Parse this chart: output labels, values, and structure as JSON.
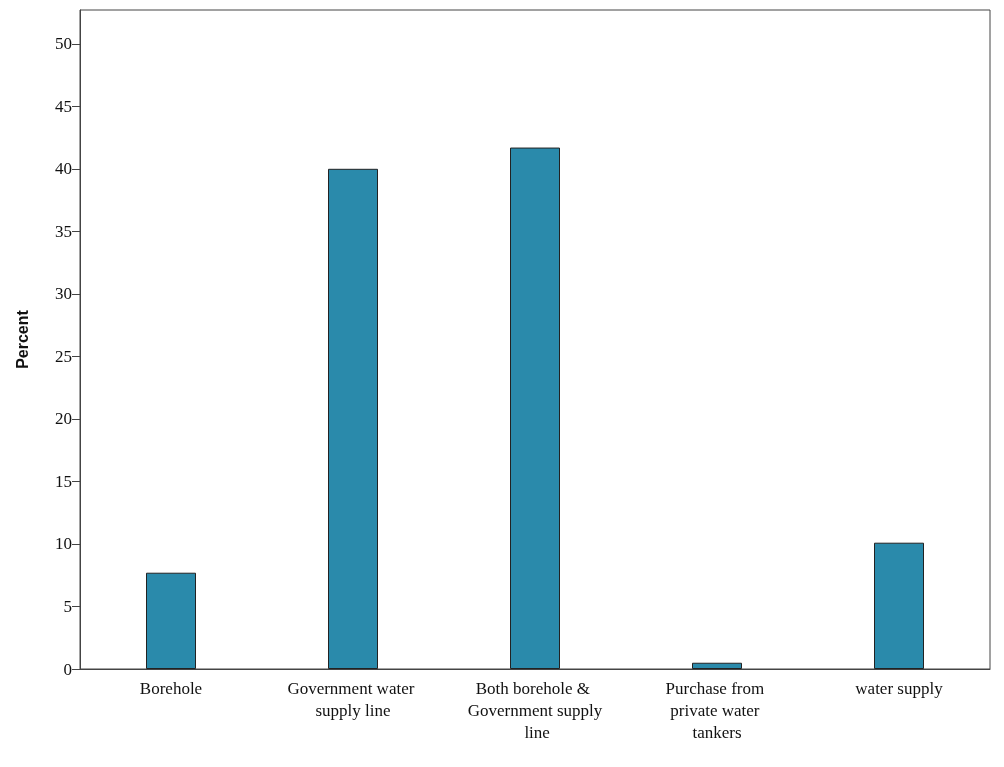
{
  "chart_data": {
    "type": "bar",
    "ylabel": "Percent",
    "categories": [
      "Borehole",
      "Government water supply line",
      "Both borehole & Government supply line",
      "Purchase from private water tankers",
      "water supply"
    ],
    "values": [
      7.7,
      40.0,
      41.7,
      0.5,
      10.1
    ],
    "color": "#2a8aab",
    "ylim": [
      0,
      52.7
    ],
    "yticks": [
      0,
      5,
      10,
      15,
      20,
      25,
      30,
      35,
      40,
      45,
      50
    ],
    "grid": false
  }
}
